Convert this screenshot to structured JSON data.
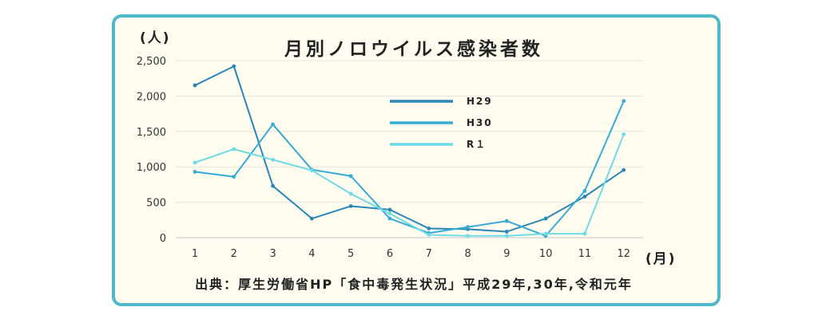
{
  "chart_data": {
    "type": "line",
    "title": "月別ノロウイルス感染者数",
    "ylabel": "(人)",
    "xlabel": "(月)",
    "categories": [
      "1",
      "2",
      "3",
      "4",
      "5",
      "6",
      "7",
      "8",
      "9",
      "10",
      "11",
      "12"
    ],
    "y_ticks": [
      "0",
      "500",
      "1,000",
      "1,500",
      "2,000",
      "2,500"
    ],
    "ylim": [
      0,
      2500
    ],
    "grid": true,
    "legend_position": "center-right",
    "series": [
      {
        "name": "H29",
        "color": "#2b86b8",
        "values": [
          2150,
          2420,
          730,
          270,
          445,
          395,
          130,
          120,
          85,
          270,
          580,
          955
        ]
      },
      {
        "name": "H30",
        "color": "#38aad6",
        "values": [
          930,
          860,
          1600,
          960,
          870,
          270,
          65,
          150,
          235,
          25,
          660,
          1930
        ]
      },
      {
        "name": "R１",
        "color": "#6fdbe6",
        "values": [
          1060,
          1250,
          1100,
          950,
          620,
          340,
          40,
          25,
          25,
          55,
          55,
          1460
        ]
      }
    ],
    "source": "出典：厚生労働省HP「食中毒発生状況」平成29年,30年,令和元年"
  }
}
